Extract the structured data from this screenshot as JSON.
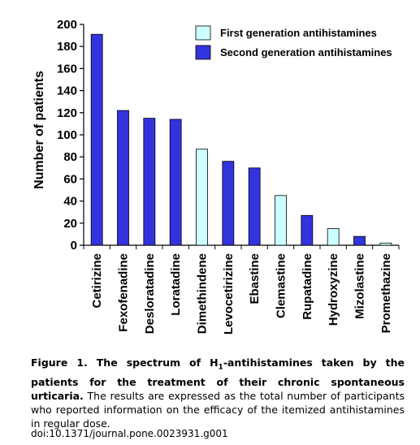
{
  "chart_data": {
    "type": "bar",
    "categories": [
      "Cetirizine",
      "Fexofenadine",
      "Desloratadine",
      "Loratadine",
      "Dimethindene",
      "Levocetirizine",
      "Ebastine",
      "Clemastine",
      "Rupatadine",
      "Hydroxyzine",
      "Mizolastine",
      "Promethazine"
    ],
    "values": [
      191,
      122,
      115,
      114,
      87,
      76,
      70,
      45,
      27,
      15,
      8,
      2
    ],
    "generation": [
      "second",
      "second",
      "second",
      "second",
      "first",
      "second",
      "second",
      "first",
      "second",
      "first",
      "second",
      "first"
    ],
    "ylabel": "Number of patients",
    "xlabel": "",
    "ylim": [
      0,
      200
    ],
    "yticks": [
      0,
      20,
      40,
      60,
      80,
      100,
      120,
      140,
      160,
      180,
      200
    ],
    "legend_position": "top-right",
    "legend": [
      {
        "key": "first",
        "label": "First generation antihistamines",
        "color": "#ccffff"
      },
      {
        "key": "second",
        "label": "Second generation antihistamines",
        "color": "#3333dd"
      }
    ],
    "grid": false
  },
  "caption": {
    "bold_part": "Figure 1. The spectrum of H",
    "subscript": "1",
    "bold_part2": "-antihistamines taken by the patients for the treatment of their chronic spontaneous urticaria.",
    "normal_part": " The results are expressed as the total number of participants who reported information on the efficacy of the itemized antihistamines in regular dose."
  },
  "doi": "doi:10.1371/journal.pone.0023931.g001"
}
